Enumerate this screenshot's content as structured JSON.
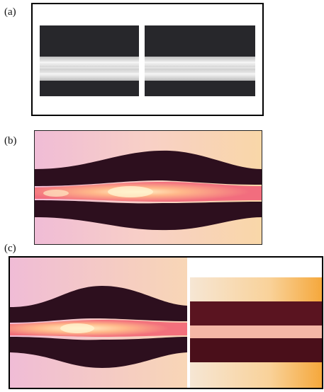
{
  "figure": {
    "panels": [
      {
        "label": "(a)",
        "description_name": "fiber-gap-micrograph"
      },
      {
        "label": "(b)",
        "description_name": "fused-taper-micrograph"
      },
      {
        "label": "(c)",
        "description_name": "taper-and-fiber-micrograph"
      }
    ]
  },
  "colors": {
    "dark_band": "#2b0f1c",
    "pink_background": "#f3c7d8",
    "core_glow": "#ffd6a3",
    "fiber_core": "#dcdcdc",
    "black": "#000000"
  }
}
